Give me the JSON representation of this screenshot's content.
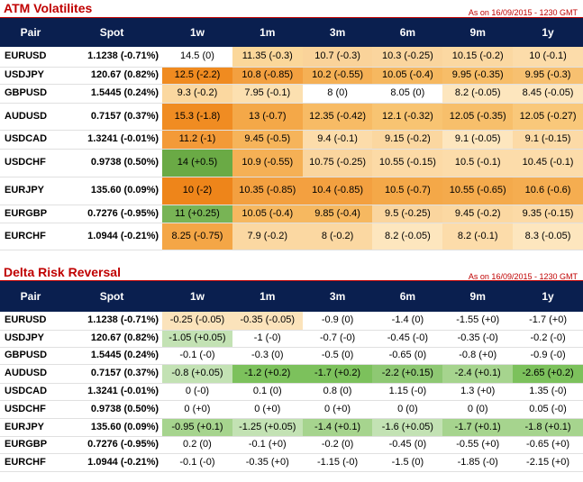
{
  "colors": {
    "title": "#c00000",
    "header_bg": "#0a1f4f",
    "header_text": "#ffffff"
  },
  "columns": [
    "Pair",
    "Spot",
    "1w",
    "1m",
    "3m",
    "6m",
    "9m",
    "1y"
  ],
  "atm": {
    "title": "ATM Volatilites",
    "as_of": "As on 16/09/2015 - 1230 GMT",
    "rows": [
      {
        "pair": "EURUSD",
        "spot": "1.1238 (-0.71%)",
        "cells": [
          {
            "text": "14.5 (0)",
            "color": "#ffffff"
          },
          {
            "text": "11.35 (-0.3)",
            "color": "#fbd79a"
          },
          {
            "text": "10.7 (-0.3)",
            "color": "#fad39a"
          },
          {
            "text": "10.3 (-0.25)",
            "color": "#fad59e"
          },
          {
            "text": "10.15 (-0.2)",
            "color": "#fbd8a2"
          },
          {
            "text": "10 (-0.1)",
            "color": "#fcdcaa"
          }
        ]
      },
      {
        "pair": "USDJPY",
        "spot": "120.67 (0.82%)",
        "cells": [
          {
            "text": "12.5 (-2.2)",
            "color": "#f08b20"
          },
          {
            "text": "10.8 (-0.85)",
            "color": "#f3a040"
          },
          {
            "text": "10.2 (-0.55)",
            "color": "#f5b055"
          },
          {
            "text": "10.05 (-0.4)",
            "color": "#f6b860"
          },
          {
            "text": "9.95 (-0.35)",
            "color": "#f7bd68"
          },
          {
            "text": "9.95 (-0.3)",
            "color": "#f7c070"
          }
        ]
      },
      {
        "pair": "GBPUSD",
        "spot": "1.5445 (0.24%)",
        "cells": [
          {
            "text": "9.3 (-0.2)",
            "color": "#fbd8a0"
          },
          {
            "text": "7.95 (-0.1)",
            "color": "#fce0b0"
          },
          {
            "text": "8 (0)",
            "color": "#ffffff"
          },
          {
            "text": "8.05 (0)",
            "color": "#ffffff"
          },
          {
            "text": "8.2 (-0.05)",
            "color": "#fde6be"
          },
          {
            "text": "8.45 (-0.05)",
            "color": "#fde6be"
          }
        ]
      },
      {
        "pair": "AUDUSD",
        "spot": "0.7157 (0.37%)",
        "cells": [
          {
            "text": "15.3 (-1.8)",
            "color": "#f08c22"
          },
          {
            "text": "13 (-0.7)",
            "color": "#f4a848"
          },
          {
            "text": "12.35 (-0.42)",
            "color": "#f7bb65"
          },
          {
            "text": "12.1 (-0.32)",
            "color": "#f8c472"
          },
          {
            "text": "12.05 (-0.35)",
            "color": "#f7bf6b"
          },
          {
            "text": "12.05 (-0.27)",
            "color": "#f9c87a"
          }
        ]
      },
      {
        "pair": "USDCAD",
        "spot": "1.3241 (-0.01%)",
        "cells": [
          {
            "text": "11.2 (-1)",
            "color": "#f39a38"
          },
          {
            "text": "9.45 (-0.5)",
            "color": "#f6b45a"
          },
          {
            "text": "9.4 (-0.1)",
            "color": "#fcdcaa"
          },
          {
            "text": "9.15 (-0.2)",
            "color": "#fbd7a0"
          },
          {
            "text": "9.1 (-0.05)",
            "color": "#fde6be"
          },
          {
            "text": "9.1 (-0.15)",
            "color": "#fcdaa6"
          }
        ]
      },
      {
        "pair": "USDCHF",
        "spot": "0.9738 (0.50%)",
        "cells": [
          {
            "text": "14 (+0.5)",
            "color": "#6aaa45"
          },
          {
            "text": "10.9 (-0.55)",
            "color": "#f5b055"
          },
          {
            "text": "10.75 (-0.25)",
            "color": "#fad59e"
          },
          {
            "text": "10.55 (-0.15)",
            "color": "#fcdaa6"
          },
          {
            "text": "10.5 (-0.1)",
            "color": "#fcdcaa"
          },
          {
            "text": "10.45 (-0.1)",
            "color": "#fcdcaa"
          }
        ]
      },
      {
        "pair": "EURJPY",
        "spot": "135.60 (0.09%)",
        "cells": [
          {
            "text": "10 (-2)",
            "color": "#ee851a"
          },
          {
            "text": "10.35 (-0.85)",
            "color": "#f3a040"
          },
          {
            "text": "10.4 (-0.85)",
            "color": "#f3a040"
          },
          {
            "text": "10.5 (-0.7)",
            "color": "#f4a848"
          },
          {
            "text": "10.55 (-0.65)",
            "color": "#f4aa4c"
          },
          {
            "text": "10.6 (-0.6)",
            "color": "#f5ad50"
          }
        ]
      },
      {
        "pair": "EURGBP",
        "spot": "0.7276 (-0.95%)",
        "cells": [
          {
            "text": "11 (+0.25)",
            "color": "#78b455"
          },
          {
            "text": "10.05 (-0.4)",
            "color": "#f6b860"
          },
          {
            "text": "9.85 (-0.4)",
            "color": "#f6b860"
          },
          {
            "text": "9.5 (-0.25)",
            "color": "#fad59e"
          },
          {
            "text": "9.45 (-0.2)",
            "color": "#fbd8a2"
          },
          {
            "text": "9.35 (-0.15)",
            "color": "#fcdaa6"
          }
        ]
      },
      {
        "pair": "EURCHF",
        "spot": "1.0944 (-0.21%)",
        "cells": [
          {
            "text": "8.25 (-0.75)",
            "color": "#f4a646"
          },
          {
            "text": "7.9 (-0.2)",
            "color": "#fbd8a2"
          },
          {
            "text": "8 (-0.2)",
            "color": "#fbd8a2"
          },
          {
            "text": "8.2 (-0.05)",
            "color": "#fde6be"
          },
          {
            "text": "8.2 (-0.1)",
            "color": "#fcdcaa"
          },
          {
            "text": "8.3 (-0.05)",
            "color": "#fde6be"
          }
        ]
      }
    ]
  },
  "rr": {
    "title": "Delta Risk Reversal",
    "as_of": "As on 16/09/2015 - 1230 GMT",
    "rows": [
      {
        "pair": "EURUSD",
        "spot": "1.1238 (-0.71%)",
        "cells": [
          {
            "text": "-0.25 (-0.05)",
            "color": "#fbe3bb"
          },
          {
            "text": "-0.35 (-0.05)",
            "color": "#fbe3bb"
          },
          {
            "text": "-0.9 (0)",
            "color": "#ffffff"
          },
          {
            "text": "-1.4 (0)",
            "color": "#ffffff"
          },
          {
            "text": "-1.55 (+0)",
            "color": "#ffffff"
          },
          {
            "text": "-1.7 (+0)",
            "color": "#ffffff"
          }
        ]
      },
      {
        "pair": "USDJPY",
        "spot": "120.67 (0.82%)",
        "cells": [
          {
            "text": "-1.05 (+0.05)",
            "color": "#c3e2b4"
          },
          {
            "text": "-1 (-0)",
            "color": "#ffffff"
          },
          {
            "text": "-0.7 (-0)",
            "color": "#ffffff"
          },
          {
            "text": "-0.45 (-0)",
            "color": "#ffffff"
          },
          {
            "text": "-0.35 (-0)",
            "color": "#ffffff"
          },
          {
            "text": "-0.2 (-0)",
            "color": "#ffffff"
          }
        ]
      },
      {
        "pair": "GBPUSD",
        "spot": "1.5445 (0.24%)",
        "cells": [
          {
            "text": "-0.1 (-0)",
            "color": "#ffffff"
          },
          {
            "text": "-0.3 (0)",
            "color": "#ffffff"
          },
          {
            "text": "-0.5 (0)",
            "color": "#ffffff"
          },
          {
            "text": "-0.65 (0)",
            "color": "#ffffff"
          },
          {
            "text": "-0.8 (+0)",
            "color": "#ffffff"
          },
          {
            "text": "-0.9 (-0)",
            "color": "#ffffff"
          }
        ]
      },
      {
        "pair": "AUDUSD",
        "spot": "0.7157 (0.37%)",
        "cells": [
          {
            "text": "-0.8 (+0.05)",
            "color": "#c3e2b4"
          },
          {
            "text": "-1.2 (+0.2)",
            "color": "#7cc15c"
          },
          {
            "text": "-1.7 (+0.2)",
            "color": "#7cc15c"
          },
          {
            "text": "-2.2 (+0.15)",
            "color": "#8ec873"
          },
          {
            "text": "-2.4 (+0.1)",
            "color": "#a6d48e"
          },
          {
            "text": "-2.65 (+0.2)",
            "color": "#7cc15c"
          }
        ]
      },
      {
        "pair": "USDCAD",
        "spot": "1.3241 (-0.01%)",
        "cells": [
          {
            "text": "0 (-0)",
            "color": "#ffffff"
          },
          {
            "text": "0.1 (0)",
            "color": "#ffffff"
          },
          {
            "text": "0.8 (0)",
            "color": "#ffffff"
          },
          {
            "text": "1.15 (-0)",
            "color": "#ffffff"
          },
          {
            "text": "1.3 (+0)",
            "color": "#ffffff"
          },
          {
            "text": "1.35 (-0)",
            "color": "#ffffff"
          }
        ]
      },
      {
        "pair": "USDCHF",
        "spot": "0.9738 (0.50%)",
        "cells": [
          {
            "text": "0 (+0)",
            "color": "#ffffff"
          },
          {
            "text": "0 (+0)",
            "color": "#ffffff"
          },
          {
            "text": "0 (+0)",
            "color": "#ffffff"
          },
          {
            "text": "0 (0)",
            "color": "#ffffff"
          },
          {
            "text": "0 (0)",
            "color": "#ffffff"
          },
          {
            "text": "0.05 (-0)",
            "color": "#ffffff"
          }
        ]
      },
      {
        "pair": "EURJPY",
        "spot": "135.60 (0.09%)",
        "cells": [
          {
            "text": "-0.95 (+0.1)",
            "color": "#a6d48e"
          },
          {
            "text": "-1.25 (+0.05)",
            "color": "#c3e2b4"
          },
          {
            "text": "-1.4 (+0.1)",
            "color": "#a6d48e"
          },
          {
            "text": "-1.6 (+0.05)",
            "color": "#c3e2b4"
          },
          {
            "text": "-1.7 (+0.1)",
            "color": "#a6d48e"
          },
          {
            "text": "-1.8 (+0.1)",
            "color": "#a6d48e"
          }
        ]
      },
      {
        "pair": "EURGBP",
        "spot": "0.7276 (-0.95%)",
        "cells": [
          {
            "text": "0.2 (0)",
            "color": "#ffffff"
          },
          {
            "text": "-0.1 (+0)",
            "color": "#ffffff"
          },
          {
            "text": "-0.2 (0)",
            "color": "#ffffff"
          },
          {
            "text": "-0.45 (0)",
            "color": "#ffffff"
          },
          {
            "text": "-0.55 (+0)",
            "color": "#ffffff"
          },
          {
            "text": "-0.65 (+0)",
            "color": "#ffffff"
          }
        ]
      },
      {
        "pair": "EURCHF",
        "spot": "1.0944 (-0.21%)",
        "cells": [
          {
            "text": "-0.1 (-0)",
            "color": "#ffffff"
          },
          {
            "text": "-0.35 (+0)",
            "color": "#ffffff"
          },
          {
            "text": "-1.15 (-0)",
            "color": "#ffffff"
          },
          {
            "text": "-1.5 (0)",
            "color": "#ffffff"
          },
          {
            "text": "-1.85 (-0)",
            "color": "#ffffff"
          },
          {
            "text": "-2.15 (+0)",
            "color": "#ffffff"
          }
        ]
      }
    ]
  }
}
